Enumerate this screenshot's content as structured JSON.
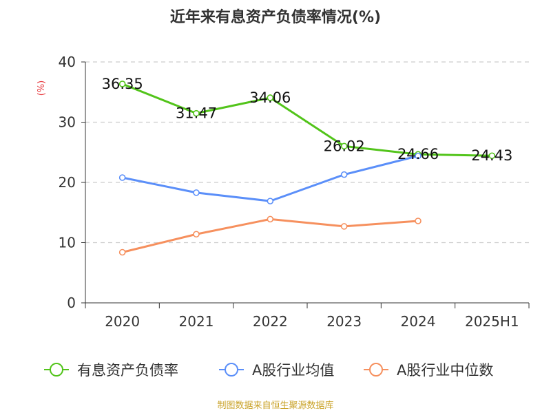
{
  "chart_data": {
    "type": "line",
    "title": "近年来有息资产负债率情况(%)",
    "ylabel": "(%)",
    "xlabel": "",
    "categories": [
      "2020",
      "2021",
      "2022",
      "2023",
      "2024",
      "2025H1"
    ],
    "yticks": [
      "0",
      "10",
      "20",
      "30",
      "40"
    ],
    "ylim": [
      0,
      40
    ],
    "grid": true,
    "legend_position": "bottom",
    "series": [
      {
        "name": "有息资产负债率",
        "color": "#52c41a",
        "values": [
          36.35,
          31.47,
          34.06,
          26.02,
          24.66,
          24.43
        ],
        "labels": [
          "36.35",
          "31.47",
          "34.06",
          "26.02",
          "24.66",
          "24.43"
        ]
      },
      {
        "name": "A股行业均值",
        "color": "#5b8ff9",
        "values": [
          20.8,
          18.3,
          16.9,
          21.3,
          24.4,
          null
        ]
      },
      {
        "name": "A股行业中位数",
        "color": "#f6905e",
        "values": [
          8.4,
          11.4,
          13.9,
          12.7,
          13.6,
          null
        ]
      }
    ]
  },
  "source": "制图数据来自恒生聚源数据库"
}
